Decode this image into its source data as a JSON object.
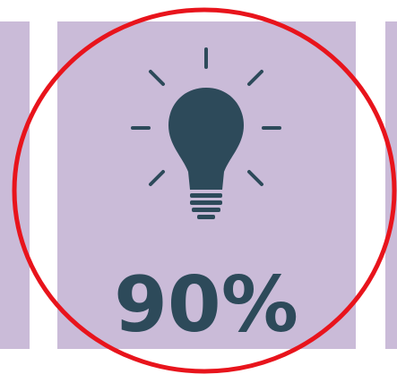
{
  "stat": {
    "value_text": "90%"
  }
}
